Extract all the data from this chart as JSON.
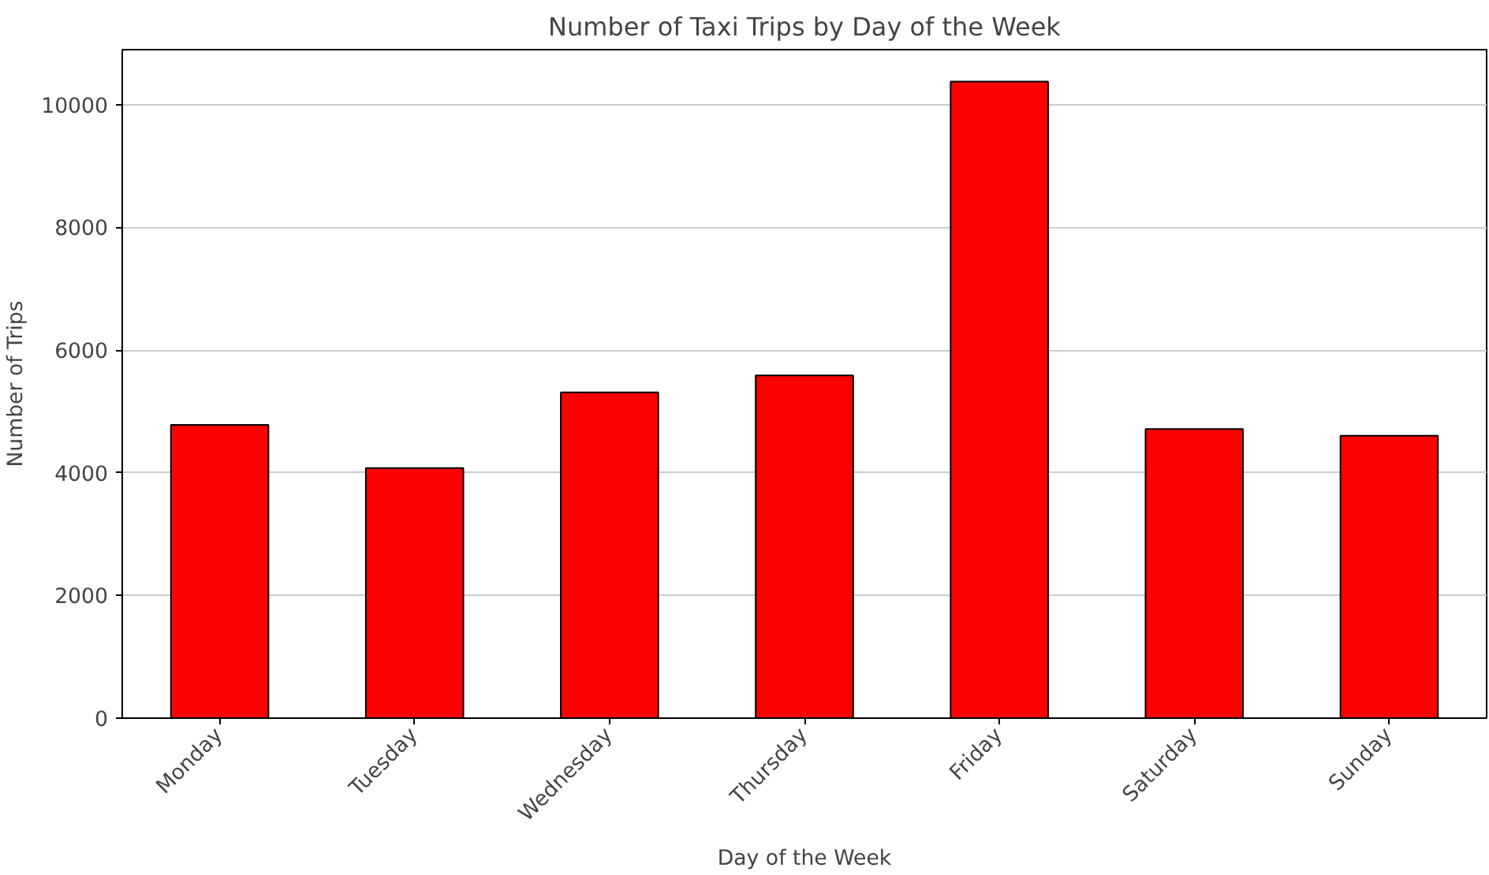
{
  "chart_data": {
    "type": "bar",
    "title": "Number of Taxi Trips by Day of the Week",
    "xlabel": "Day of the Week",
    "ylabel": "Number of Trips",
    "categories": [
      "Monday",
      "Tuesday",
      "Wednesday",
      "Thursday",
      "Friday",
      "Saturday",
      "Sunday"
    ],
    "values": [
      4780,
      4075,
      5310,
      5585,
      10377,
      4712,
      4604
    ],
    "color": "#ff0000",
    "ylim": [
      0,
      10896
    ],
    "yticks": [
      0,
      2000,
      4000,
      6000,
      8000,
      10000
    ],
    "grid": "y"
  }
}
